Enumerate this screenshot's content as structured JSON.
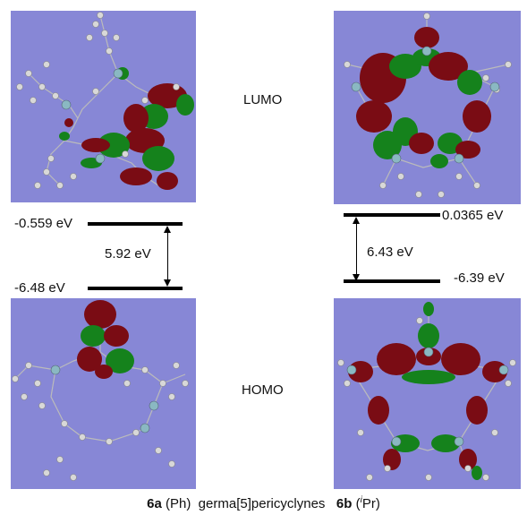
{
  "labels": {
    "lumo": "LUMO",
    "homo": "HOMO"
  },
  "left": {
    "lumo_energy": "-0.559 eV",
    "homo_energy": "-6.48 eV",
    "gap": "5.92 eV"
  },
  "right": {
    "lumo_energy": "0.0365 eV",
    "homo_energy": "-6.39 eV",
    "gap": "6.43 eV"
  },
  "caption": {
    "a_bold": "6a",
    "a_rest": " (Ph)  germa[5]pericyclynes   ",
    "b_bold": "6b",
    "b_open": " (",
    "b_sup": "i",
    "b_close": "Pr)"
  },
  "colors": {
    "panel_bg": "#8787d6",
    "orbital_red": "#7a0c14",
    "orbital_green": "#15821c",
    "atom_grey": "#d8d8d8",
    "atom_ge": "#8ab8c2"
  }
}
